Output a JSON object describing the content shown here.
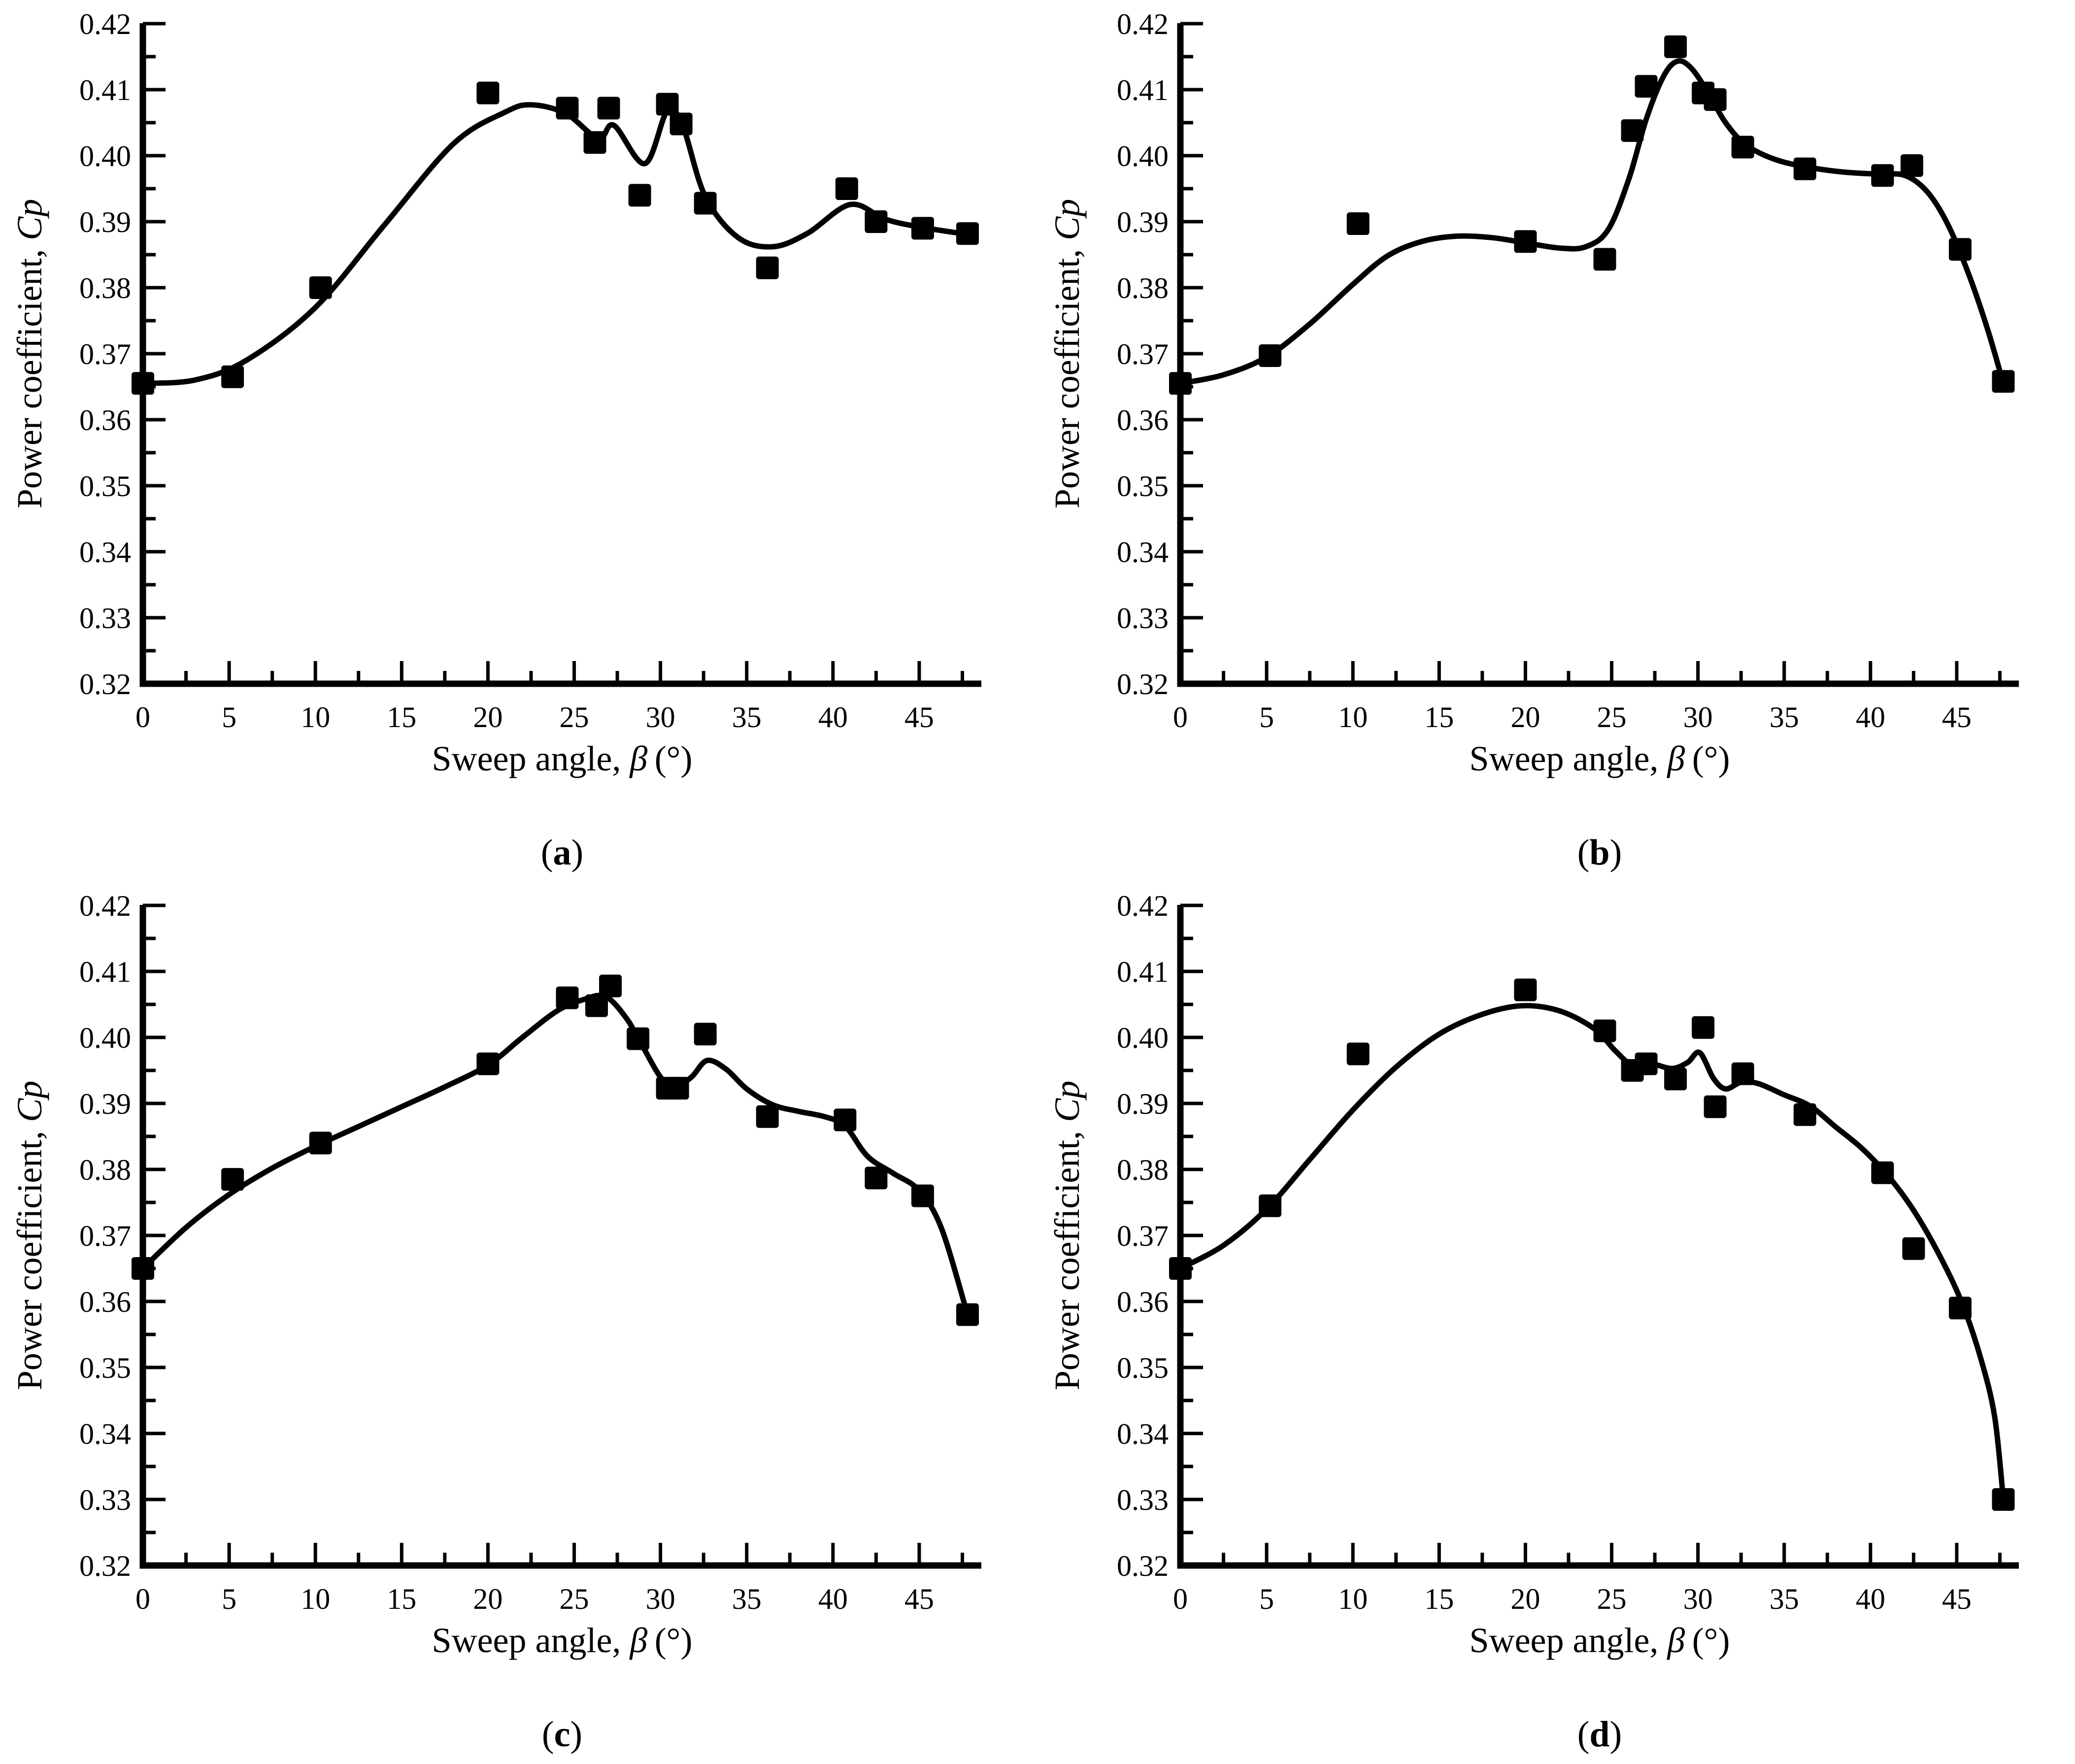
{
  "figure": {
    "background": "#ffffff",
    "ink": "#000000",
    "marker": "filled-square"
  },
  "labels": {
    "xlabel_prefix": "Sweep angle, ",
    "xlabel_symbol": "β",
    "xlabel_suffix": " (°)",
    "ylabel_prefix": "Power coefficient, ",
    "ylabel_symbol": "Cp"
  },
  "chart_data": [
    {
      "id": "a",
      "type": "scatter",
      "caption_prefix": "(",
      "caption_letter": "a",
      "caption_suffix": ")",
      "title": "",
      "xlabel": "Sweep angle, β(°)",
      "ylabel": "Power coefficient, Cp",
      "xlim": [
        0,
        48.6
      ],
      "ylim": [
        0.32,
        0.42
      ],
      "xticks": {
        "major_start": 0,
        "major_end": 45,
        "major_step": 5,
        "minor_step": 2.5,
        "minor_end": 47.5
      },
      "yticks": {
        "major_step": 0.01,
        "minor_step": 0.005,
        "decimals": 2
      },
      "points": [
        [
          0,
          0.3655
        ],
        [
          5.2,
          0.3665
        ],
        [
          10.3,
          0.38
        ],
        [
          20,
          0.4095
        ],
        [
          24.6,
          0.4072
        ],
        [
          26.2,
          0.402
        ],
        [
          27,
          0.4072
        ],
        [
          28.8,
          0.394
        ],
        [
          30.4,
          0.4078
        ],
        [
          31.2,
          0.4048
        ],
        [
          32.6,
          0.3928
        ],
        [
          36.2,
          0.383
        ],
        [
          40.8,
          0.395
        ],
        [
          42.5,
          0.39
        ],
        [
          45.2,
          0.389
        ],
        [
          47.8,
          0.3882
        ]
      ],
      "fit_curve": [
        [
          0,
          0.3655
        ],
        [
          3,
          0.366
        ],
        [
          6,
          0.369
        ],
        [
          10,
          0.377
        ],
        [
          14,
          0.3895
        ],
        [
          18,
          0.4018
        ],
        [
          21,
          0.4066
        ],
        [
          22.5,
          0.4077
        ],
        [
          24.5,
          0.4064
        ],
        [
          26.4,
          0.4026
        ],
        [
          27.3,
          0.4046
        ],
        [
          29.1,
          0.3988
        ],
        [
          30.4,
          0.4068
        ],
        [
          31.3,
          0.4044
        ],
        [
          32.6,
          0.3938
        ],
        [
          34.5,
          0.3876
        ],
        [
          36.5,
          0.3862
        ],
        [
          38.5,
          0.3882
        ],
        [
          41,
          0.3926
        ],
        [
          43,
          0.3904
        ],
        [
          45,
          0.3892
        ],
        [
          48,
          0.388
        ]
      ]
    },
    {
      "id": "b",
      "type": "scatter",
      "caption_prefix": "(",
      "caption_letter": "b",
      "caption_suffix": ")",
      "title": "",
      "xlabel": "Sweep angle, β(°)",
      "ylabel": "Power coefficient, Cp",
      "xlim": [
        0,
        48.6
      ],
      "ylim": [
        0.32,
        0.42
      ],
      "xticks": {
        "major_start": 0,
        "major_end": 45,
        "major_step": 5,
        "minor_step": 2.5,
        "minor_end": 47.5
      },
      "yticks": {
        "major_step": 0.01,
        "minor_step": 0.005,
        "decimals": 2
      },
      "points": [
        [
          0,
          0.3655
        ],
        [
          5.2,
          0.3697
        ],
        [
          10.3,
          0.3897
        ],
        [
          20,
          0.387
        ],
        [
          24.6,
          0.3843
        ],
        [
          26.2,
          0.4038
        ],
        [
          27,
          0.4105
        ],
        [
          28.7,
          0.4165
        ],
        [
          30.3,
          0.4095
        ],
        [
          31,
          0.4085
        ],
        [
          32.6,
          0.4013
        ],
        [
          36.2,
          0.398
        ],
        [
          40.7,
          0.397
        ],
        [
          42.4,
          0.3985
        ],
        [
          45.2,
          0.3858
        ],
        [
          47.7,
          0.3658
        ]
      ],
      "fit_curve": [
        [
          0,
          0.3655
        ],
        [
          2.5,
          0.3668
        ],
        [
          5,
          0.3695
        ],
        [
          7.5,
          0.3745
        ],
        [
          10,
          0.3805
        ],
        [
          12,
          0.3848
        ],
        [
          14,
          0.387
        ],
        [
          16,
          0.3878
        ],
        [
          18,
          0.3876
        ],
        [
          20,
          0.3868
        ],
        [
          22,
          0.386
        ],
        [
          23.5,
          0.3862
        ],
        [
          24.8,
          0.3888
        ],
        [
          26,
          0.3965
        ],
        [
          27,
          0.4055
        ],
        [
          28,
          0.412
        ],
        [
          28.8,
          0.4143
        ],
        [
          29.6,
          0.4133
        ],
        [
          30.6,
          0.4095
        ],
        [
          31.6,
          0.405
        ],
        [
          32.8,
          0.4016
        ],
        [
          34.5,
          0.3994
        ],
        [
          36.5,
          0.3982
        ],
        [
          38.5,
          0.3975
        ],
        [
          40.5,
          0.3972
        ],
        [
          42,
          0.397
        ],
        [
          43.3,
          0.3945
        ],
        [
          44.5,
          0.3895
        ],
        [
          45.7,
          0.382
        ],
        [
          46.8,
          0.3736
        ],
        [
          47.7,
          0.3655
        ]
      ]
    },
    {
      "id": "c",
      "type": "scatter",
      "caption_prefix": "(",
      "caption_letter": "c",
      "caption_suffix": ")",
      "title": "",
      "xlabel": "Sweep angle, β(°)",
      "ylabel": "Power coefficient, Cp",
      "xlim": [
        0,
        48.6
      ],
      "ylim": [
        0.32,
        0.42
      ],
      "xticks": {
        "major_start": 0,
        "major_end": 45,
        "major_step": 5,
        "minor_step": 2.5,
        "minor_end": 47.5
      },
      "yticks": {
        "major_step": 0.01,
        "minor_step": 0.005,
        "decimals": 2
      },
      "points": [
        [
          0,
          0.365
        ],
        [
          5.2,
          0.3785
        ],
        [
          10.3,
          0.384
        ],
        [
          20,
          0.396
        ],
        [
          24.6,
          0.406
        ],
        [
          26.3,
          0.4048
        ],
        [
          27.1,
          0.4078
        ],
        [
          28.7,
          0.3998
        ],
        [
          30.4,
          0.3923
        ],
        [
          31,
          0.3923
        ],
        [
          32.6,
          0.4005
        ],
        [
          36.2,
          0.388
        ],
        [
          40.7,
          0.3875
        ],
        [
          42.5,
          0.3787
        ],
        [
          45.2,
          0.376
        ],
        [
          47.8,
          0.358
        ]
      ],
      "fit_curve": [
        [
          0,
          0.365
        ],
        [
          2.5,
          0.3712
        ],
        [
          5,
          0.3762
        ],
        [
          7.5,
          0.3802
        ],
        [
          10,
          0.3835
        ],
        [
          12.5,
          0.3865
        ],
        [
          15,
          0.3895
        ],
        [
          17.5,
          0.3925
        ],
        [
          20,
          0.3958
        ],
        [
          22,
          0.4
        ],
        [
          24,
          0.404
        ],
        [
          25.5,
          0.4057
        ],
        [
          26.8,
          0.4062
        ],
        [
          28,
          0.403
        ],
        [
          29,
          0.3985
        ],
        [
          30,
          0.394
        ],
        [
          30.8,
          0.3924
        ],
        [
          31.8,
          0.394
        ],
        [
          32.7,
          0.3965
        ],
        [
          33.8,
          0.3952
        ],
        [
          35,
          0.3922
        ],
        [
          36.5,
          0.3898
        ],
        [
          38,
          0.3888
        ],
        [
          39.5,
          0.388
        ],
        [
          40.7,
          0.3866
        ],
        [
          42,
          0.382
        ],
        [
          43.5,
          0.3794
        ],
        [
          45,
          0.3768
        ],
        [
          46.3,
          0.371
        ],
        [
          47.8,
          0.358
        ]
      ]
    },
    {
      "id": "d",
      "type": "scatter",
      "caption_prefix": "(",
      "caption_letter": "d",
      "caption_suffix": ")",
      "title": "",
      "xlabel": "Sweep angle, β(°)",
      "ylabel": "Power coefficient, Cp",
      "xlim": [
        0,
        48.6
      ],
      "ylim": [
        0.32,
        0.42
      ],
      "xticks": {
        "major_start": 0,
        "major_end": 45,
        "major_step": 5,
        "minor_step": 2.5,
        "minor_end": 47.5
      },
      "yticks": {
        "major_step": 0.01,
        "minor_step": 0.005,
        "decimals": 2
      },
      "points": [
        [
          0,
          0.365
        ],
        [
          5.2,
          0.3745
        ],
        [
          10.3,
          0.3975
        ],
        [
          20,
          0.4072
        ],
        [
          24.6,
          0.401
        ],
        [
          26.2,
          0.395
        ],
        [
          27,
          0.396
        ],
        [
          28.7,
          0.3937
        ],
        [
          30.3,
          0.4015
        ],
        [
          31,
          0.3895
        ],
        [
          32.6,
          0.3945
        ],
        [
          36.2,
          0.3883
        ],
        [
          40.7,
          0.3795
        ],
        [
          42.5,
          0.368
        ],
        [
          45.2,
          0.359
        ],
        [
          47.7,
          0.33
        ]
      ],
      "fit_curve": [
        [
          0,
          0.365
        ],
        [
          2.5,
          0.3685
        ],
        [
          5,
          0.374
        ],
        [
          7.5,
          0.3815
        ],
        [
          10,
          0.389
        ],
        [
          12.5,
          0.3955
        ],
        [
          15,
          0.4005
        ],
        [
          17.5,
          0.4035
        ],
        [
          19.8,
          0.4048
        ],
        [
          22,
          0.404
        ],
        [
          24,
          0.4013
        ],
        [
          25.2,
          0.398
        ],
        [
          26.2,
          0.3958
        ],
        [
          27.3,
          0.396
        ],
        [
          28.5,
          0.3953
        ],
        [
          29.4,
          0.3962
        ],
        [
          30.1,
          0.3977
        ],
        [
          30.9,
          0.3938
        ],
        [
          31.6,
          0.3922
        ],
        [
          32.5,
          0.3932
        ],
        [
          33.5,
          0.393
        ],
        [
          35,
          0.3913
        ],
        [
          36.5,
          0.3896
        ],
        [
          38,
          0.3864
        ],
        [
          39.5,
          0.3832
        ],
        [
          41,
          0.3791
        ],
        [
          42.5,
          0.3738
        ],
        [
          44,
          0.367
        ],
        [
          45.3,
          0.3598
        ],
        [
          46.4,
          0.3513
        ],
        [
          47.2,
          0.3425
        ],
        [
          47.7,
          0.33
        ]
      ]
    }
  ]
}
